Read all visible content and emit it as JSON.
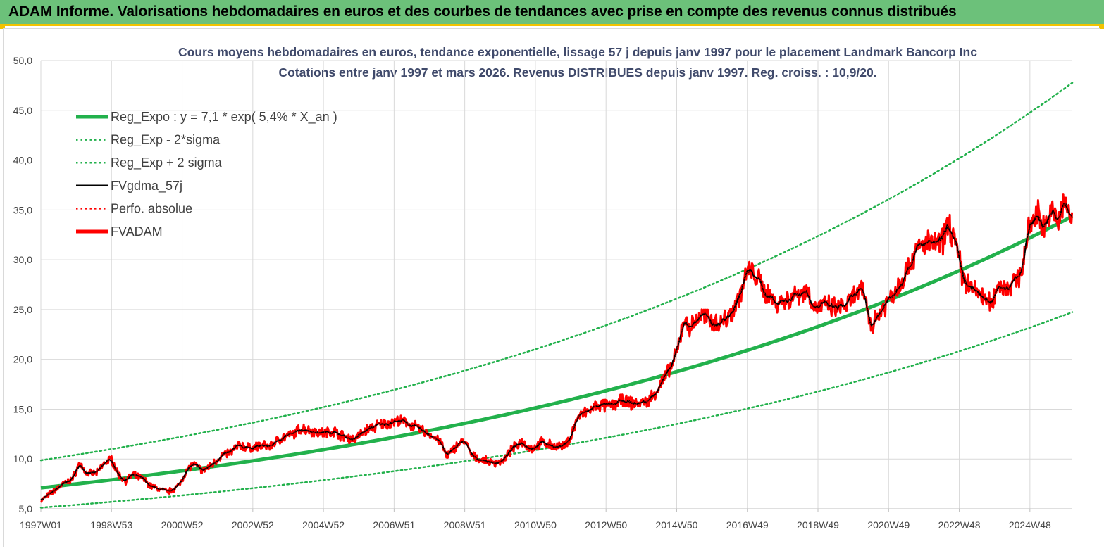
{
  "banner": {
    "title": "ADAM Informe. Valorisations hebdomadaires en euros et des courbes de tendances avec prise en compte des revenus connus distribués"
  },
  "colors": {
    "banner_bg": "#6cc17a",
    "accent": "#f2c200",
    "trend": "#22b14c",
    "price": "#ff0000",
    "average": "#000000",
    "title_text": "#404a6b"
  },
  "chart_data": {
    "type": "line",
    "title_line1": "Cours moyens hebdomadaires en euros, tendance exponentielle, lissage 57 j depuis janv 1997 pour le placement Landmark Bancorp Inc",
    "title_line2": "Cotations entre janv 1997 et mars 2026. Revenus DISTRIBUES depuis janv 1997. Reg. croiss. : 10,9/20.",
    "xlabel": "",
    "ylabel": "",
    "x_range": [
      1997.0,
      2026.2
    ],
    "ylim": [
      5,
      50
    ],
    "y_ticks": [
      "5,0",
      "10,0",
      "15,0",
      "20,0",
      "25,0",
      "30,0",
      "35,0",
      "40,0",
      "45,0",
      "50,0"
    ],
    "x_ticks": [
      {
        "label": "1997W01",
        "t": 1997.0
      },
      {
        "label": "1998W53",
        "t": 1999.0
      },
      {
        "label": "2000W52",
        "t": 2001.0
      },
      {
        "label": "2002W52",
        "t": 2003.0
      },
      {
        "label": "2004W52",
        "t": 2005.0
      },
      {
        "label": "2006W51",
        "t": 2007.0
      },
      {
        "label": "2008W51",
        "t": 2009.0
      },
      {
        "label": "2010W50",
        "t": 2011.0
      },
      {
        "label": "2012W50",
        "t": 2013.0
      },
      {
        "label": "2014W50",
        "t": 2015.0
      },
      {
        "label": "2016W49",
        "t": 2017.0
      },
      {
        "label": "2018W49",
        "t": 2019.0
      },
      {
        "label": "2020W49",
        "t": 2021.0
      },
      {
        "label": "2022W48",
        "t": 2023.0
      },
      {
        "label": "2024W48",
        "t": 2025.0
      }
    ],
    "legend": [
      {
        "label": "Reg_Expo : y = 7,1 * exp( 5,4% *  X_an )",
        "style": "thick",
        "color": "#22b14c"
      },
      {
        "label": "Reg_Exp - 2*sigma",
        "style": "dotted",
        "color": "#22b14c"
      },
      {
        "label": "Reg_Exp + 2 sigma",
        "style": "dotted",
        "color": "#22b14c"
      },
      {
        "label": "FVgdma_57j",
        "style": "solid",
        "color": "#000000"
      },
      {
        "label": "Perfo. absolue",
        "style": "dotted",
        "color": "#ff0000"
      },
      {
        "label": "FVADAM",
        "style": "thick",
        "color": "#ff0000"
      }
    ],
    "regression": {
      "a": 7.1,
      "rate": 0.054,
      "lower_factor": 0.72,
      "upper_factor": 1.39
    },
    "series": [
      {
        "name": "FVADAM",
        "points": [
          [
            1997.0,
            5.8
          ],
          [
            1997.3,
            6.6
          ],
          [
            1997.6,
            7.4
          ],
          [
            1997.9,
            8.0
          ],
          [
            1998.1,
            9.6
          ],
          [
            1998.3,
            8.5
          ],
          [
            1998.6,
            8.6
          ],
          [
            1998.8,
            9.6
          ],
          [
            1999.0,
            10.0
          ],
          [
            1999.2,
            8.4
          ],
          [
            1999.4,
            7.8
          ],
          [
            1999.6,
            8.4
          ],
          [
            1999.9,
            8.0
          ],
          [
            2000.1,
            7.3
          ],
          [
            2000.4,
            6.9
          ],
          [
            2000.6,
            6.7
          ],
          [
            2000.9,
            7.3
          ],
          [
            2001.1,
            8.7
          ],
          [
            2001.3,
            9.5
          ],
          [
            2001.6,
            8.8
          ],
          [
            2001.8,
            9.3
          ],
          [
            2002.1,
            10.3
          ],
          [
            2002.4,
            10.7
          ],
          [
            2002.6,
            11.4
          ],
          [
            2002.9,
            11.1
          ],
          [
            2003.2,
            11.3
          ],
          [
            2003.5,
            11.3
          ],
          [
            2003.8,
            12.1
          ],
          [
            2004.1,
            12.4
          ],
          [
            2004.4,
            13.1
          ],
          [
            2004.7,
            12.8
          ],
          [
            2005.0,
            12.6
          ],
          [
            2005.3,
            12.8
          ],
          [
            2005.6,
            12.2
          ],
          [
            2005.9,
            12.0
          ],
          [
            2006.2,
            12.9
          ],
          [
            2006.5,
            13.3
          ],
          [
            2006.8,
            13.6
          ],
          [
            2007.1,
            13.8
          ],
          [
            2007.4,
            13.6
          ],
          [
            2007.7,
            13.0
          ],
          [
            2008.0,
            12.5
          ],
          [
            2008.3,
            11.8
          ],
          [
            2008.5,
            10.2
          ],
          [
            2008.8,
            11.5
          ],
          [
            2009.0,
            11.8
          ],
          [
            2009.2,
            10.3
          ],
          [
            2009.5,
            9.9
          ],
          [
            2009.8,
            9.6
          ],
          [
            2010.1,
            9.8
          ],
          [
            2010.3,
            10.8
          ],
          [
            2010.6,
            11.8
          ],
          [
            2010.9,
            11.0
          ],
          [
            2011.2,
            11.7
          ],
          [
            2011.5,
            11.3
          ],
          [
            2011.8,
            11.2
          ],
          [
            2012.0,
            12.2
          ],
          [
            2012.2,
            14.2
          ],
          [
            2012.5,
            14.8
          ],
          [
            2012.8,
            15.4
          ],
          [
            2013.1,
            15.3
          ],
          [
            2013.4,
            15.8
          ],
          [
            2013.7,
            15.6
          ],
          [
            2014.0,
            15.6
          ],
          [
            2014.2,
            15.8
          ],
          [
            2014.5,
            17.2
          ],
          [
            2014.8,
            18.9
          ],
          [
            2015.0,
            20.5
          ],
          [
            2015.2,
            24.0
          ],
          [
            2015.4,
            23.2
          ],
          [
            2015.7,
            24.5
          ],
          [
            2015.9,
            24.0
          ],
          [
            2016.2,
            23.6
          ],
          [
            2016.5,
            24.4
          ],
          [
            2016.8,
            26.5
          ],
          [
            2017.0,
            28.8
          ],
          [
            2017.2,
            28.6
          ],
          [
            2017.5,
            26.8
          ],
          [
            2017.8,
            25.8
          ],
          [
            2018.1,
            25.9
          ],
          [
            2018.4,
            26.6
          ],
          [
            2018.7,
            26.9
          ],
          [
            2018.9,
            25.2
          ],
          [
            2019.2,
            25.4
          ],
          [
            2019.5,
            25.1
          ],
          [
            2019.8,
            25.4
          ],
          [
            2020.1,
            26.6
          ],
          [
            2020.3,
            26.8
          ],
          [
            2020.5,
            23.3
          ],
          [
            2020.8,
            25.0
          ],
          [
            2021.0,
            26.0
          ],
          [
            2021.3,
            27.5
          ],
          [
            2021.6,
            29.6
          ],
          [
            2021.9,
            31.5
          ],
          [
            2022.2,
            31.6
          ],
          [
            2022.5,
            31.6
          ],
          [
            2022.7,
            33.8
          ],
          [
            2022.9,
            31.5
          ],
          [
            2023.1,
            28.3
          ],
          [
            2023.3,
            27.2
          ],
          [
            2023.6,
            26.5
          ],
          [
            2023.9,
            25.4
          ],
          [
            2024.1,
            27.6
          ],
          [
            2024.3,
            27.2
          ],
          [
            2024.6,
            27.8
          ],
          [
            2024.8,
            29.5
          ],
          [
            2025.0,
            33.5
          ],
          [
            2025.2,
            34.6
          ],
          [
            2025.4,
            33.5
          ],
          [
            2025.6,
            34.6
          ],
          [
            2025.8,
            34.0
          ],
          [
            2026.0,
            35.8
          ],
          [
            2026.2,
            33.7
          ]
        ]
      }
    ]
  }
}
